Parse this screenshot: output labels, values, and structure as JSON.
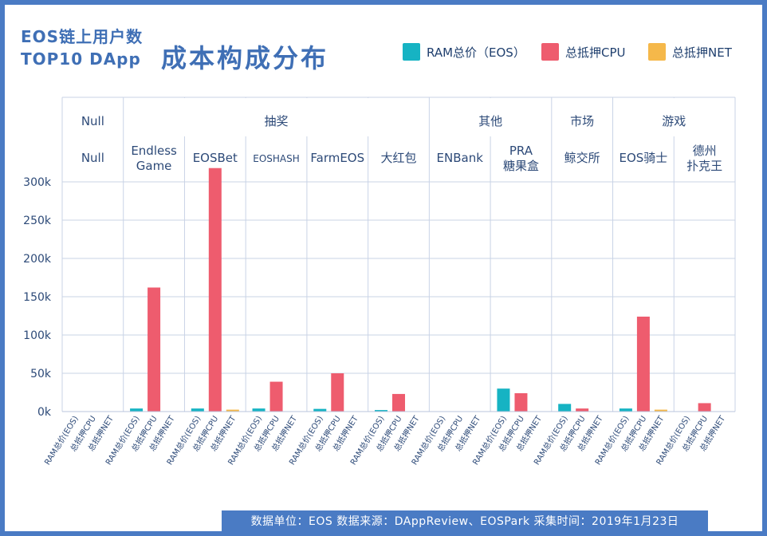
{
  "title": {
    "line1": "EOS链上用户数",
    "line2": "TOP10 DApp",
    "main": "成本构成分布"
  },
  "legend": [
    {
      "name": "RAM总价（EOS）",
      "color": "#16b3c3"
    },
    {
      "name": "总抵押CPU",
      "color": "#ee5c6e"
    },
    {
      "name": "总抵押NET",
      "color": "#f5b84a"
    }
  ],
  "footer": "数据单位：EOS   数据来源：DAppReview、EOSPark   采集时间：2019年1月23日",
  "chart_data": {
    "type": "bar",
    "ylim": [
      0,
      300000
    ],
    "yticks": [
      "0k",
      "50k",
      "100k",
      "150k",
      "200k",
      "250k",
      "300k"
    ],
    "series_labels": [
      "RAM总价(EOS)",
      "总抵押CPU",
      "总抵押NET"
    ],
    "groups": [
      {
        "name": "Null",
        "dapps": [
          "Null"
        ]
      },
      {
        "name": "抽奖",
        "dapps": [
          "Endless Game",
          "EOSBet",
          "EOSHASH",
          "FarmEOS",
          "大红包"
        ]
      },
      {
        "name": "其他",
        "dapps": [
          "ENBank",
          "PRA 糖果盒"
        ]
      },
      {
        "name": "市场",
        "dapps": [
          "鲸交所"
        ]
      },
      {
        "name": "游戏",
        "dapps": [
          "EOS骑士",
          "德州 扑克王"
        ]
      }
    ],
    "categories": [
      "Null",
      "Endless Game",
      "EOSBet",
      "EOSHASH",
      "FarmEOS",
      "大红包",
      "ENBank",
      "PRA 糖果盒",
      "鲸交所",
      "EOS骑士",
      "德州 扑克王"
    ],
    "series": [
      {
        "name": "RAM总价（EOS）",
        "values": [
          0,
          4000,
          4000,
          4000,
          3500,
          2000,
          0,
          30000,
          10000,
          4000,
          0
        ]
      },
      {
        "name": "总抵押CPU",
        "values": [
          0,
          162000,
          318000,
          39000,
          50000,
          23000,
          0,
          24000,
          4000,
          124000,
          11000
        ]
      },
      {
        "name": "总抵押NET",
        "values": [
          0,
          0,
          2500,
          0,
          0,
          0,
          0,
          0,
          0,
          2500,
          0
        ]
      }
    ]
  }
}
